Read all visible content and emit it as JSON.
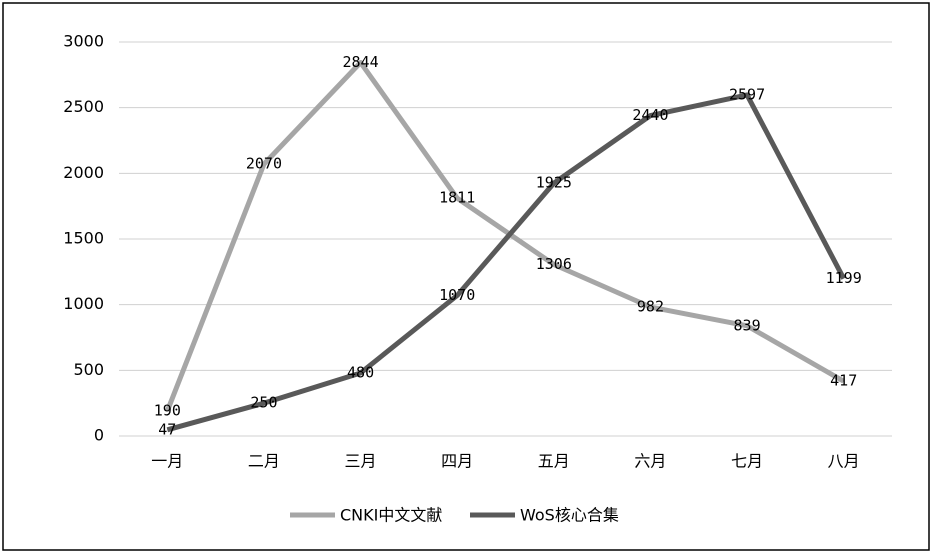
{
  "chart_data": {
    "type": "line",
    "categories": [
      "一月",
      "二月",
      "三月",
      "四月",
      "五月",
      "六月",
      "七月",
      "八月"
    ],
    "series": [
      {
        "name": "CNKI中文文献",
        "color": "#a6a6a6",
        "values": [
          190,
          2070,
          2844,
          1811,
          1306,
          982,
          839,
          417
        ]
      },
      {
        "name": "WoS核心合集",
        "color": "#595959",
        "values": [
          47,
          250,
          480,
          1070,
          1925,
          2440,
          2597,
          1199
        ]
      }
    ],
    "ylim": [
      0,
      3000
    ],
    "yticks": [
      0,
      500,
      1000,
      1500,
      2000,
      2500,
      3000
    ],
    "grid": true,
    "legend": "bottom"
  }
}
